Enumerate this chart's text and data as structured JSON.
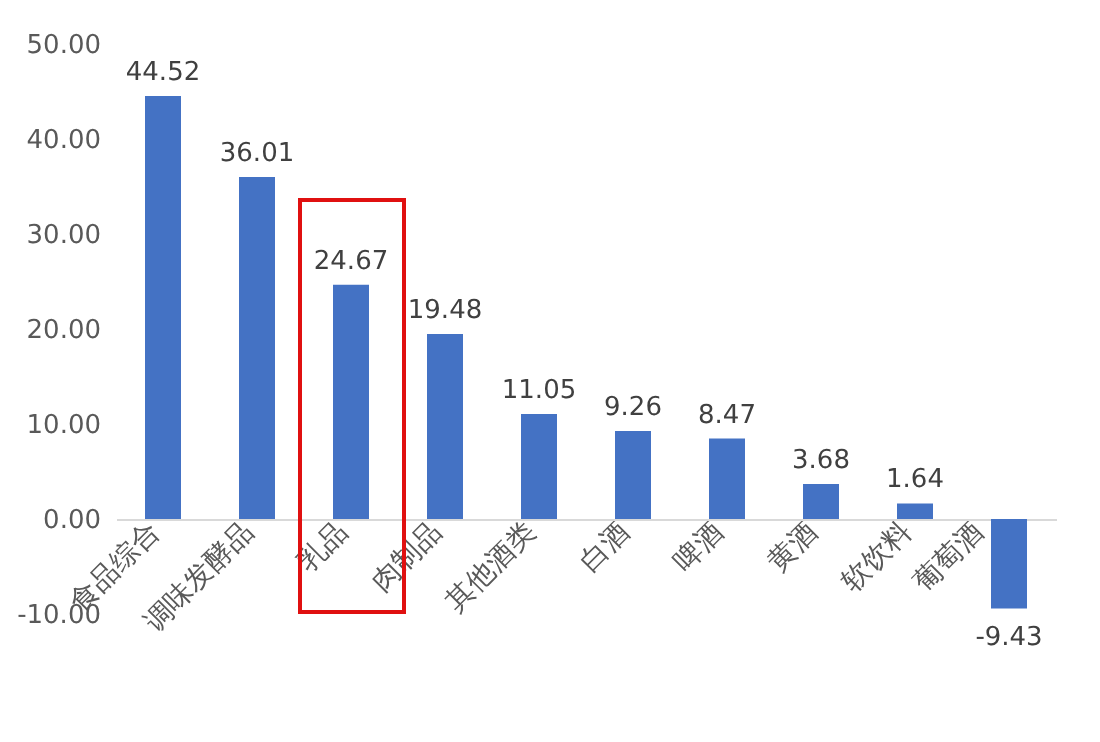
{
  "chart_data": {
    "type": "bar",
    "categories": [
      "食品综合",
      "调味发酵品",
      "乳品",
      "肉制品",
      "其他酒类",
      "白酒",
      "啤酒",
      "黄酒",
      "软饮料",
      "葡萄酒"
    ],
    "values": [
      44.52,
      36.01,
      24.67,
      19.48,
      11.05,
      9.26,
      8.47,
      3.68,
      1.64,
      -9.43
    ],
    "color": "#4472c4",
    "ylim": [
      -10,
      50
    ],
    "yticks": [
      {
        "value": -10,
        "label": "-10.00"
      },
      {
        "value": 0,
        "label": "0.00"
      },
      {
        "value": 10,
        "label": "10.00"
      },
      {
        "value": 20,
        "label": "20.00"
      },
      {
        "value": 30,
        "label": "30.00"
      },
      {
        "value": 40,
        "label": "40.00"
      },
      {
        "value": 50,
        "label": "50.00"
      }
    ],
    "data_labels": true,
    "grid": false
  }
}
